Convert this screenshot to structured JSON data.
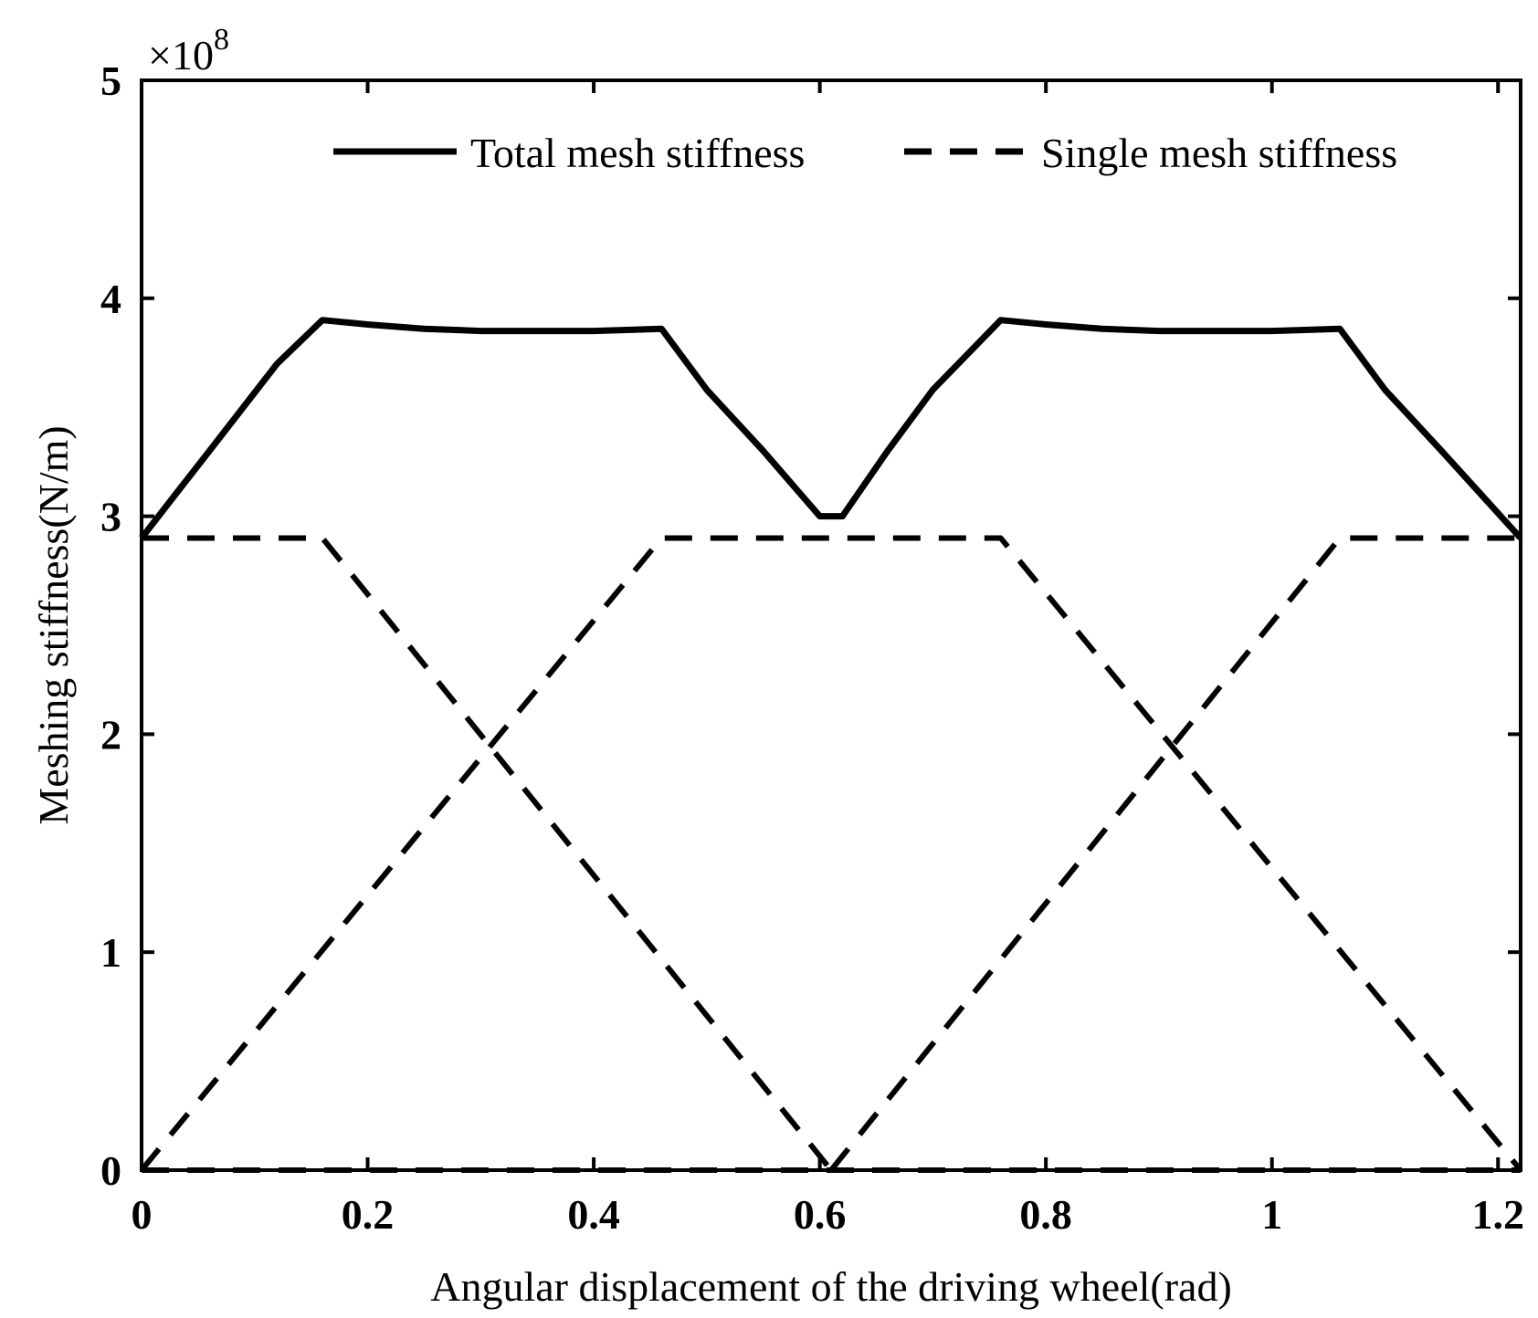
{
  "chart_data": {
    "type": "line",
    "title": "",
    "xlabel": "Angular displacement of the driving wheel(rad)",
    "ylabel": "Meshing stiffness(N/m)",
    "xlim": [
      0,
      1.22
    ],
    "ylim": [
      0,
      5
    ],
    "y_exponent_label": {
      "base": "×10",
      "exp": "8"
    },
    "xticks": [
      0,
      0.2,
      0.4,
      0.6,
      0.8,
      1,
      1.2
    ],
    "xtick_labels": [
      "0",
      "0.2",
      "0.4",
      "0.6",
      "0.8",
      "1",
      "1.2"
    ],
    "yticks": [
      0,
      1,
      2,
      3,
      4,
      5
    ],
    "ytick_labels": [
      "0",
      "1",
      "2",
      "3",
      "4",
      "5"
    ],
    "grid": false,
    "legend_position": "top-right",
    "series": [
      {
        "name": "Total mesh stiffness",
        "style": "solid",
        "x": [
          0,
          0.03,
          0.06,
          0.09,
          0.12,
          0.16,
          0.2,
          0.25,
          0.3,
          0.35,
          0.4,
          0.46,
          0.5,
          0.55,
          0.6,
          0.62,
          0.66,
          0.7,
          0.76,
          0.8,
          0.85,
          0.9,
          0.95,
          1.0,
          1.06,
          1.1,
          1.15,
          1.22
        ],
        "y": [
          2.9,
          3.1,
          3.3,
          3.5,
          3.7,
          3.9,
          3.88,
          3.86,
          3.85,
          3.85,
          3.85,
          3.86,
          3.58,
          3.3,
          3.0,
          3.0,
          3.3,
          3.58,
          3.9,
          3.88,
          3.86,
          3.85,
          3.85,
          3.85,
          3.86,
          3.58,
          3.3,
          2.9
        ]
      },
      {
        "name": "Single mesh stiffness",
        "style": "dashed",
        "x": [
          0,
          0.16,
          0.61
        ],
        "y": [
          2.9,
          2.9,
          0
        ]
      },
      {
        "name": "Single mesh stiffness",
        "style": "dashed",
        "x": [
          0,
          0.46,
          0.76,
          1.22
        ],
        "y": [
          0,
          2.9,
          2.9,
          0
        ]
      },
      {
        "name": "Single mesh stiffness",
        "style": "dashed",
        "x": [
          0.61,
          1.06,
          1.22
        ],
        "y": [
          0,
          2.9,
          2.9
        ]
      },
      {
        "name": "Single mesh stiffness",
        "style": "dashed",
        "x": [
          0,
          1.22
        ],
        "y": [
          0,
          0
        ]
      }
    ]
  }
}
